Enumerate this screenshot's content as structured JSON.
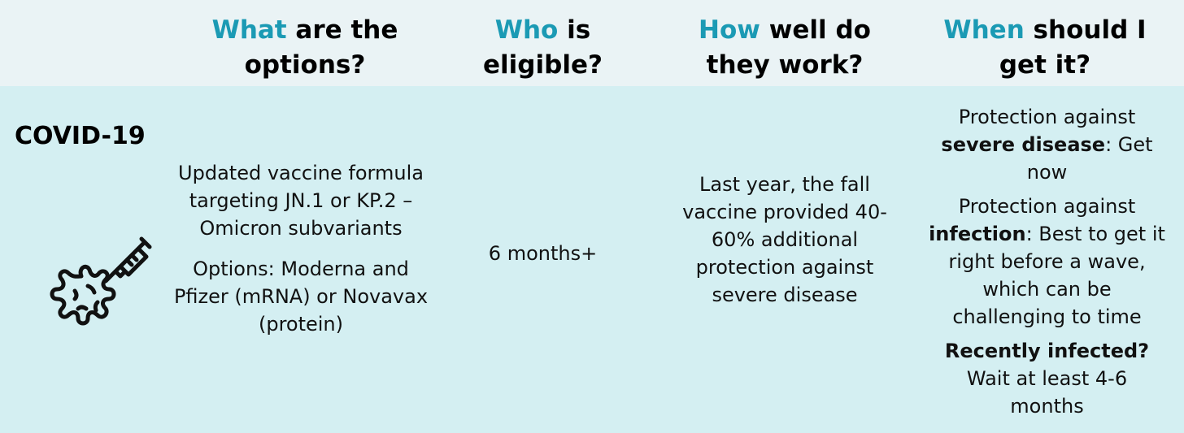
{
  "header": {
    "col1": {
      "key": "What",
      "rest": " are the options?"
    },
    "col2": {
      "key": "Who",
      "rest": " is eligible?"
    },
    "col3": {
      "key": "How",
      "rest": " well do they work?"
    },
    "col4": {
      "key": "When",
      "rest": " should I get it?"
    }
  },
  "row": {
    "label": "COVID-19",
    "icon": "virus-syringe-icon",
    "options": [
      "Updated vaccine formula targeting JN.1 or KP.2 – Omicron subvariants",
      "Options: Moderna and Pfizer (mRNA) or Novavax (protein)"
    ],
    "eligible": "6 months+",
    "effectiveness": "Last year, the fall vaccine provided 40-60% additional protection against severe disease",
    "when": [
      {
        "pre": "Protection against ",
        "bold": "severe disease",
        "post": ": Get now"
      },
      {
        "pre": "Protection against ",
        "bold": "infection",
        "post": ": Best to get it right before a wave, which can be challenging to time"
      },
      {
        "pre": "",
        "bold": "Recently infected?",
        "post": " Wait at least 4-6 months"
      }
    ]
  },
  "colors": {
    "accent": "#1b9ab4",
    "header_bg": "#eaf3f5",
    "body_bg": "#d4eff2"
  }
}
